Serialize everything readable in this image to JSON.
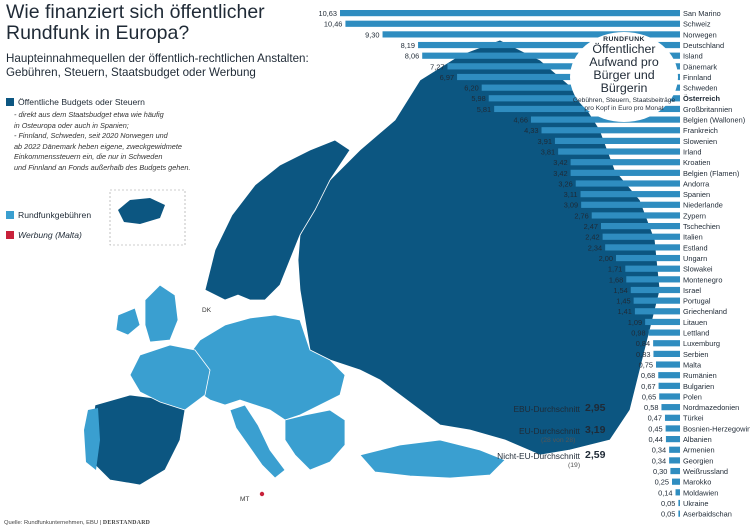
{
  "title": "Wie finanziert sich öffentlicher Rundfunk in Europa?",
  "subtitle": "Haupteinnahmequellen der öffentlich-rechtlichen Anstalten: Gebühren, Steuern, Staatsbudget oder Werbung",
  "legend": {
    "budget": {
      "label": "Öffentliche Budgets oder Steuern",
      "color": "#0c5681"
    },
    "notes": [
      "- direkt aus dem Staatsbudget etwa wie häufig",
      "in Osteuropa oder auch in Spanien;",
      "- Finnland, Schweden, seit 2020 Norwegen und",
      "ab 2022 Dänemark heben eigene, zweckgewidmete",
      "Einkommenssteuern ein, die nur in Schweden",
      "und Finnland an Fonds außerhalb des Budgets gehen."
    ],
    "fees": {
      "label": "Rundfunkgebühren",
      "color": "#3a9fd0"
    },
    "ads": {
      "label": "Werbung (Malta)",
      "color": "#c8213a"
    }
  },
  "map_labels": {
    "dk": "DK",
    "mt": "MT"
  },
  "callout": {
    "brand": "RUNDFUNK",
    "heading": "Öffentlicher Aufwand pro Bürger und Bürgerin",
    "sub": "Gebühren, Steuern, Staatsbeiträge pro Kopf in Euro pro Monat"
  },
  "averages": [
    {
      "label": "EBU-Durchschnitt",
      "value": "2,95",
      "note": ""
    },
    {
      "label": "EU-Durchschnitt",
      "value": "3,19",
      "note": "(28 von 28)"
    },
    {
      "label": "Nicht-EU-Durchschnitt",
      "value": "2,59",
      "note": "(19)"
    }
  ],
  "source": {
    "text": "Quelle: Rundfunkunternehmen, EBU",
    "brand": "DERSTANDARD"
  },
  "chart_data": {
    "type": "bar",
    "orientation": "horizontal",
    "title": "Öffentlicher Aufwand pro Bürger und Bürgerin",
    "unit": "Euro pro Monat",
    "bar_color": "#2f8dc0",
    "highlight": "Österreich",
    "categories": [
      "San Marino",
      "Schweiz",
      "Norwegen",
      "Deutschland",
      "Island",
      "Dänemark",
      "Finnland",
      "Schweden",
      "Österreich",
      "Großbritannien",
      "Belgien (Wallonen)",
      "Frankreich",
      "Slowenien",
      "Irland",
      "Kroatien",
      "Belgien (Flamen)",
      "Andorra",
      "Spanien",
      "Niederlande",
      "Zypern",
      "Tschechien",
      "Italien",
      "Estland",
      "Ungarn",
      "Slowakei",
      "Montenegro",
      "Israel",
      "Portugal",
      "Griechenland",
      "Litauen",
      "Lettland",
      "Luxemburg",
      "Serbien",
      "Malta",
      "Rumänien",
      "Bulgarien",
      "Polen",
      "Nordmazedonien",
      "Türkei",
      "Bosnien-Herzegowina",
      "Albanien",
      "Armenien",
      "Georgien",
      "Weißrussland",
      "Marokko",
      "Moldawien",
      "Ukraine",
      "Aserbaidschan"
    ],
    "values": [
      10.63,
      10.46,
      9.3,
      8.19,
      8.06,
      7.27,
      6.97,
      6.2,
      5.98,
      5.81,
      4.66,
      4.33,
      3.91,
      3.81,
      3.42,
      3.42,
      3.26,
      3.11,
      3.09,
      2.76,
      2.47,
      2.42,
      2.34,
      2.0,
      1.71,
      1.68,
      1.54,
      1.45,
      1.41,
      1.09,
      0.98,
      0.84,
      0.83,
      0.75,
      0.68,
      0.67,
      0.65,
      0.58,
      0.47,
      0.45,
      0.44,
      0.34,
      0.34,
      0.3,
      0.25,
      0.14,
      0.05,
      0.05
    ],
    "value_labels": [
      "10,63",
      "10,46",
      "9,30",
      "8,19",
      "8,06",
      "7,27",
      "6,97",
      "6,20",
      "5,98",
      "5,81",
      "4,66",
      "4,33",
      "3,91",
      "3,81",
      "3,42",
      "3,42",
      "3,26",
      "3,11",
      "3,09",
      "2,76",
      "2,47",
      "2,42",
      "2,34",
      "2,00",
      "1,71",
      "1,68",
      "1,54",
      "1,45",
      "1,41",
      "1,09",
      "0,98",
      "0,84",
      "0,83",
      "0,75",
      "0,68",
      "0,67",
      "0,65",
      "0,58",
      "0,47",
      "0,45",
      "0,44",
      "0,34",
      "0,34",
      "0,30",
      "0,25",
      "0,14",
      "0,05",
      "0,05"
    ],
    "xlim": [
      0,
      10.63
    ]
  }
}
